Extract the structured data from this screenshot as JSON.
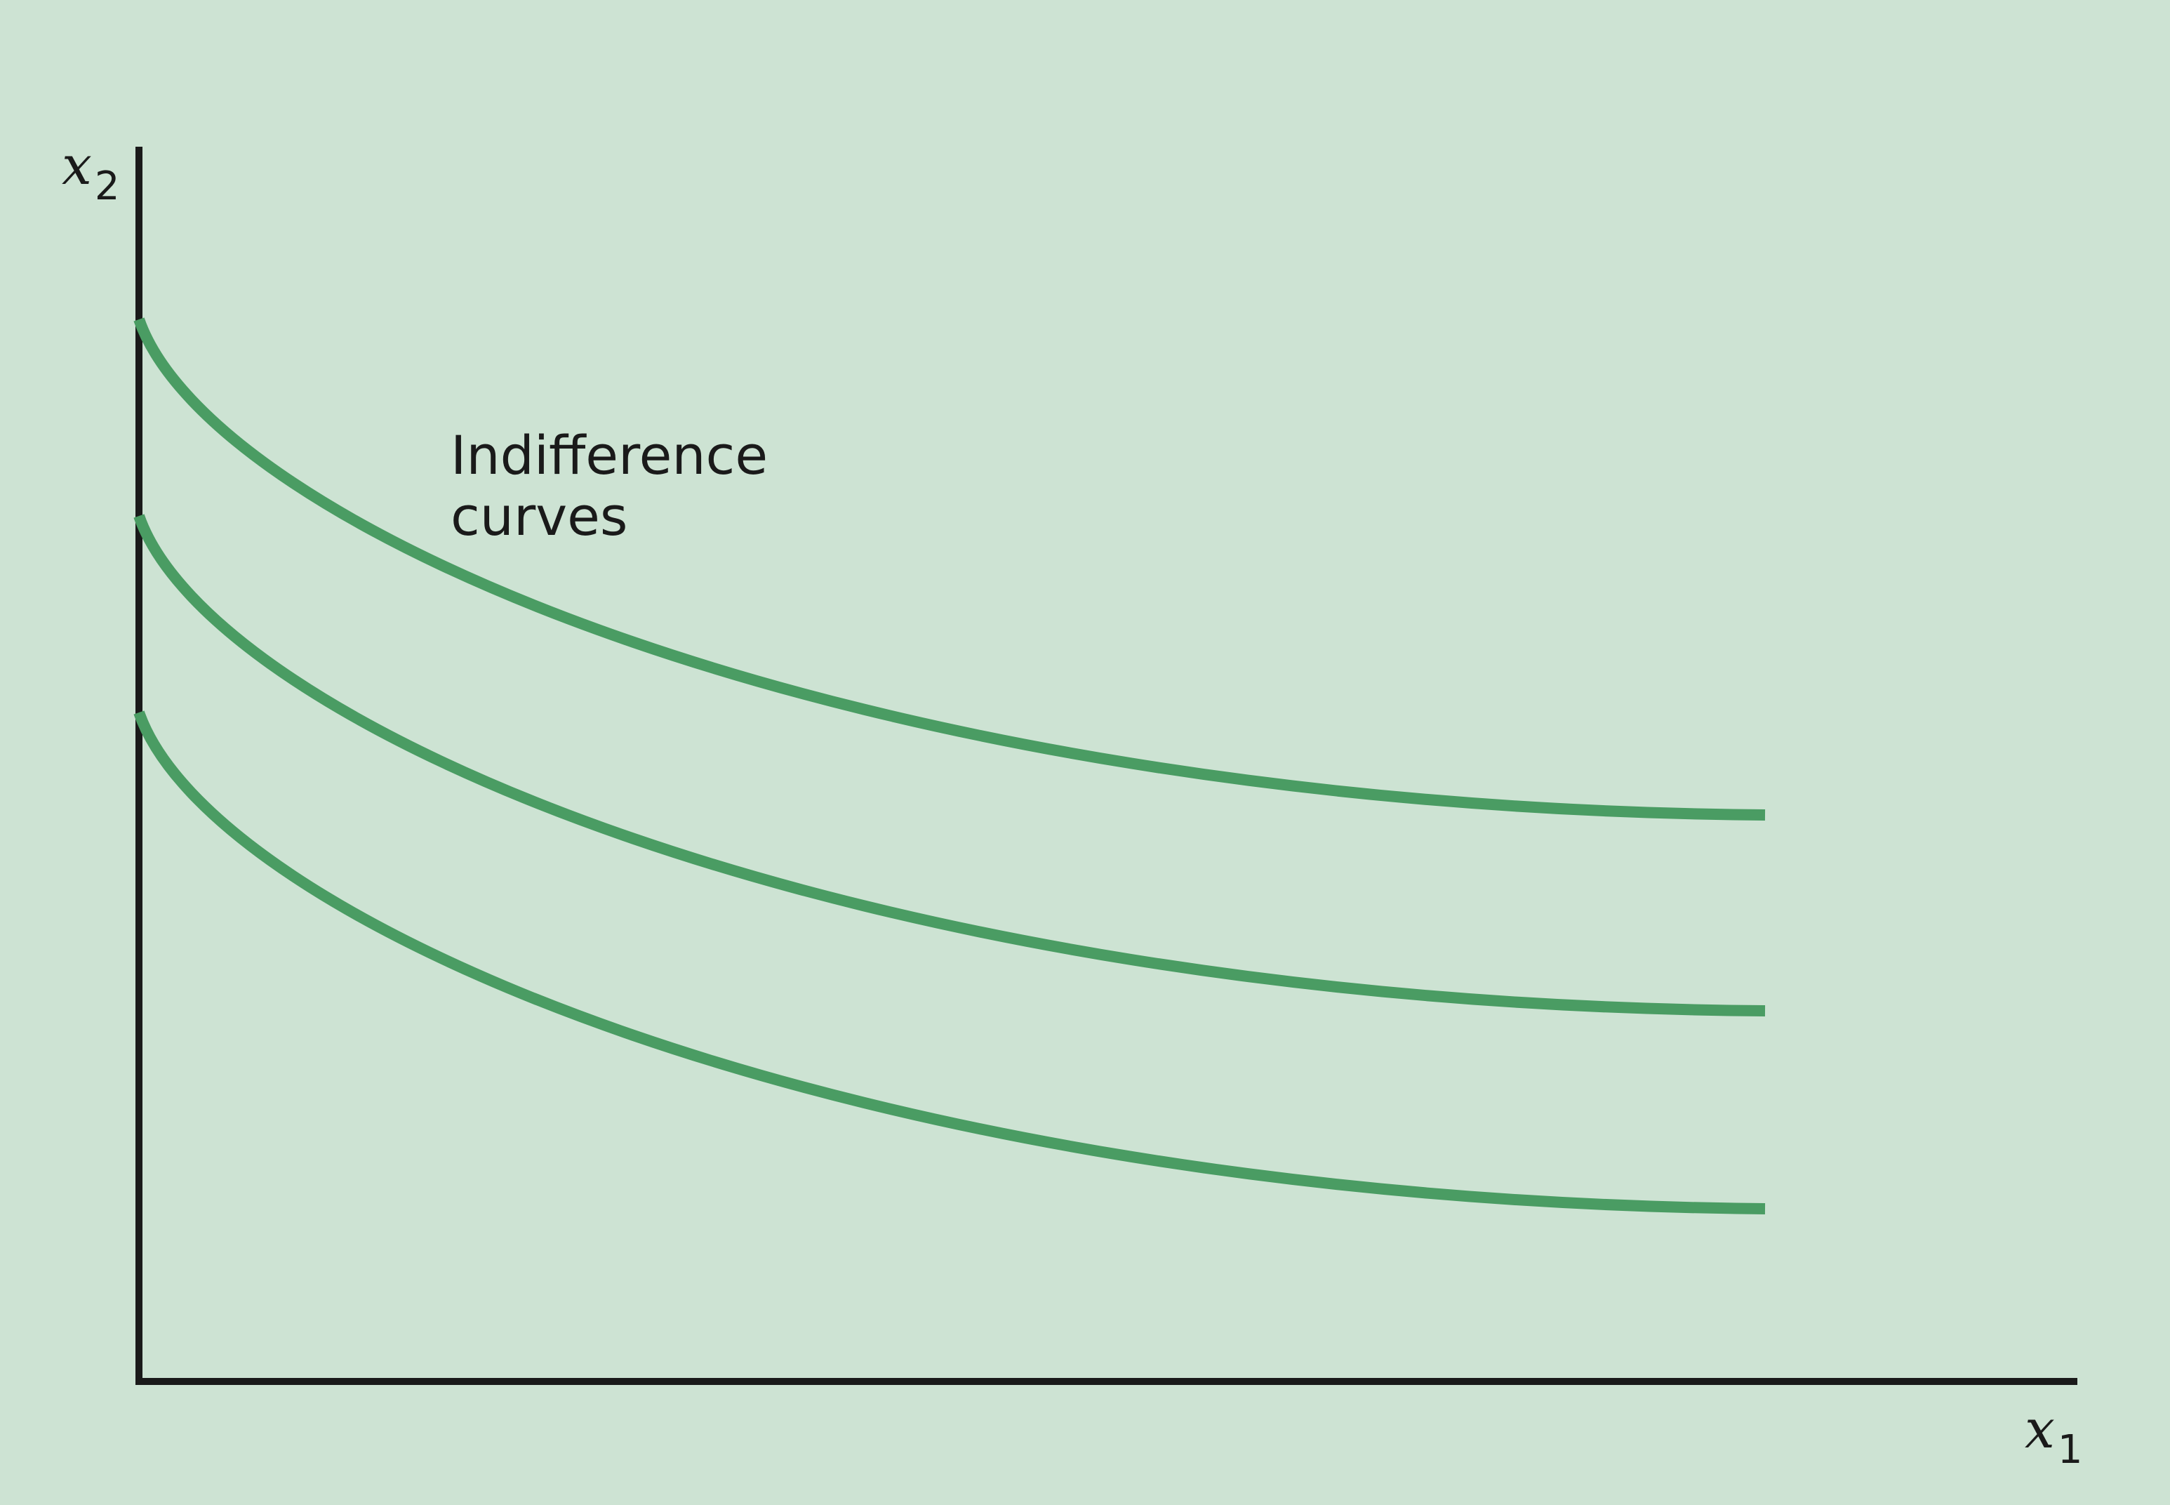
{
  "diagram": {
    "background": "#cde3d3",
    "curve_color": "#4a9c63",
    "axis_color": "#1a1a1a",
    "y_axis": {
      "var": "x",
      "sub": "2"
    },
    "x_axis": {
      "var": "x",
      "sub": "1"
    },
    "annotation": {
      "line1": "Indifference",
      "line2": "curves"
    },
    "curves": [
      {
        "name": "indifference-curve-1"
      },
      {
        "name": "indifference-curve-2"
      },
      {
        "name": "indifference-curve-3"
      }
    ]
  }
}
